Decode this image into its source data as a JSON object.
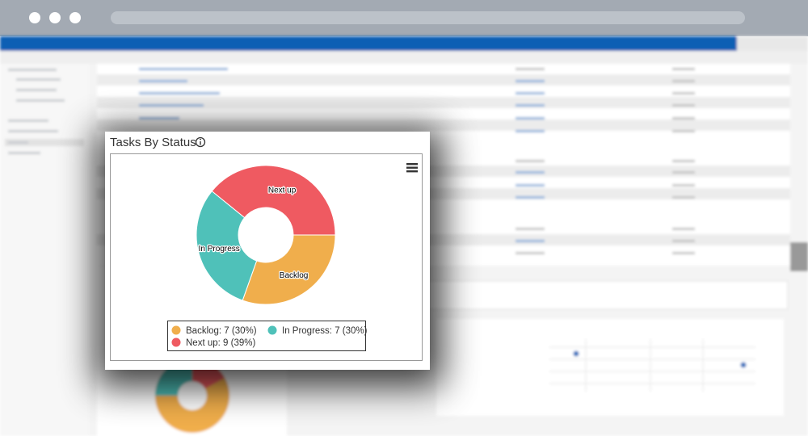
{
  "chart_data": {
    "type": "pie",
    "title": "Tasks By Status",
    "categories": [
      "Backlog",
      "In Progress",
      "Next up"
    ],
    "values": [
      7,
      7,
      9
    ],
    "colors": [
      "#f0ae4c",
      "#4fc1b9",
      "#ef5a61"
    ],
    "legend_labels": [
      "Backlog: 7 (30%)",
      "In Progress: 7 (30%)",
      "Next up: 9 (39%)"
    ]
  }
}
